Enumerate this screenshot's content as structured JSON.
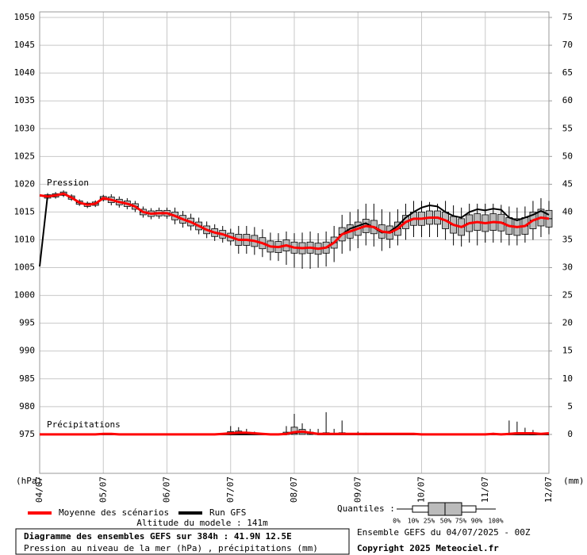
{
  "chart_data": {
    "type": "ensemble-boxplot",
    "pressure_label": "Pression",
    "precip_label": "Précipitations",
    "y_label": "(hPa)",
    "y2_label": "(mm)",
    "title": "Diagramme des ensembles GEFS sur 384h : 41.9N 12.5E",
    "subtitle": "Pression au niveau de la mer (hPa) , précipitations (mm)",
    "altitude": "Altitude du modele : 141m",
    "run_info": "Ensemble GEFS du 04/07/2025 - 00Z",
    "copyright": "Copyright 2025 Meteociel.fr",
    "quantiles_label": "Quantiles :",
    "quantile_labels": [
      "0%",
      "10%",
      "25%",
      "50%",
      "75%",
      "90%",
      "100%"
    ],
    "xlim": [
      0,
      384
    ],
    "xticks": [
      {
        "value": 0,
        "label": "04/07"
      },
      {
        "value": 48,
        "label": "05/07"
      },
      {
        "value": 96,
        "label": "06/07"
      },
      {
        "value": 144,
        "label": "07/07"
      },
      {
        "value": 192,
        "label": "08/07"
      },
      {
        "value": 240,
        "label": "09/07"
      },
      {
        "value": 288,
        "label": "10/07"
      },
      {
        "value": 336,
        "label": "11/07"
      },
      {
        "value": 384,
        "label": "12/07"
      }
    ],
    "ylim": [
      968,
      1051
    ],
    "yticks": [
      975,
      980,
      985,
      990,
      995,
      1000,
      1005,
      1010,
      1015,
      1020,
      1025,
      1030,
      1035,
      1040,
      1045,
      1050
    ],
    "y2lim": [
      -7,
      76
    ],
    "y2ticks": [
      0,
      5,
      10,
      15,
      20,
      25,
      30,
      35,
      40,
      45,
      50,
      55,
      60,
      65,
      70,
      75
    ],
    "grid": true,
    "x": [
      0,
      6,
      12,
      18,
      24,
      30,
      36,
      42,
      48,
      54,
      60,
      66,
      72,
      78,
      84,
      90,
      96,
      102,
      108,
      114,
      120,
      126,
      132,
      138,
      144,
      150,
      156,
      162,
      168,
      174,
      180,
      186,
      192,
      198,
      204,
      210,
      216,
      222,
      228,
      234,
      240,
      246,
      252,
      258,
      264,
      270,
      276,
      282,
      288,
      294,
      300,
      306,
      312,
      318,
      324,
      330,
      336,
      342,
      348,
      354,
      360,
      366,
      372,
      378,
      384
    ],
    "series": [
      {
        "name": "Moyenne des scénarios",
        "color": "#ff0000",
        "values": [
          1018.0,
          1017.8,
          1018.0,
          1018.3,
          1017.6,
          1016.7,
          1016.3,
          1016.5,
          1017.5,
          1017.2,
          1016.8,
          1016.5,
          1016.0,
          1015.0,
          1014.7,
          1014.8,
          1014.8,
          1014.3,
          1013.7,
          1013.2,
          1012.5,
          1011.8,
          1011.3,
          1011.0,
          1010.5,
          1010.0,
          1010.0,
          1009.8,
          1009.4,
          1008.8,
          1008.7,
          1009.0,
          1008.6,
          1008.5,
          1008.6,
          1008.4,
          1008.6,
          1009.5,
          1011.0,
          1011.5,
          1012.0,
          1012.5,
          1012.3,
          1011.5,
          1011.3,
          1012.0,
          1013.2,
          1013.8,
          1013.8,
          1014.0,
          1014.0,
          1013.5,
          1012.7,
          1012.3,
          1013.0,
          1013.2,
          1013.0,
          1013.2,
          1013.1,
          1012.5,
          1012.3,
          1012.5,
          1013.5,
          1014.0,
          1013.8
        ],
        "precip_values": [
          0,
          0,
          0,
          0,
          0,
          0,
          0,
          0,
          0.1,
          0.1,
          0,
          0,
          0,
          0,
          0,
          0,
          0,
          0,
          0,
          0,
          0,
          0,
          0,
          0.1,
          0.2,
          0.3,
          0.3,
          0.2,
          0.1,
          0,
          0,
          0.1,
          0.4,
          0.5,
          0.3,
          0.1,
          0.1,
          0.1,
          0.1,
          0.1,
          0.1,
          0.1,
          0.1,
          0.1,
          0.1,
          0.1,
          0.1,
          0.1,
          0,
          0,
          0,
          0,
          0,
          0,
          0,
          0,
          0,
          0.1,
          0,
          0.1,
          0.2,
          0.2,
          0.2,
          0.1,
          0.2
        ]
      },
      {
        "name": "Run GFS",
        "color": "#000000",
        "values": [
          1005.2,
          1018.0,
          1018.0,
          1018.3,
          1017.6,
          1016.7,
          1016.3,
          1016.5,
          1017.5,
          1017.2,
          1016.8,
          1016.5,
          1016.0,
          1015.0,
          1014.7,
          1014.8,
          1014.8,
          1014.3,
          1013.7,
          1013.2,
          1012.5,
          1011.8,
          1011.3,
          1011.0,
          1010.5,
          1010.0,
          1010.0,
          1009.8,
          1009.4,
          1008.8,
          1008.7,
          1009.0,
          1008.6,
          1008.5,
          1008.6,
          1008.4,
          1008.6,
          1009.5,
          1011.0,
          1012.0,
          1012.5,
          1013.0,
          1012.2,
          1011.3,
          1011.5,
          1012.5,
          1014.0,
          1015.0,
          1015.8,
          1016.2,
          1016.0,
          1015.0,
          1014.3,
          1014.0,
          1015.0,
          1015.5,
          1015.3,
          1015.6,
          1015.4,
          1014.0,
          1013.5,
          1014.0,
          1014.5,
          1015.2,
          1014.5
        ],
        "precip_values": [
          0,
          0,
          0,
          0,
          0,
          0,
          0,
          0,
          0,
          0,
          0,
          0,
          0,
          0,
          0,
          0,
          0,
          0,
          0,
          0,
          0,
          0,
          0,
          0,
          0,
          0,
          0,
          0,
          0,
          0,
          0,
          0,
          0.3,
          0.5,
          0.2,
          0,
          0,
          0,
          0,
          0,
          0,
          0,
          0,
          0,
          0,
          0,
          0,
          0,
          0,
          0,
          0,
          0,
          0,
          0,
          0,
          0,
          0,
          0,
          0,
          0,
          0,
          0,
          0,
          0,
          0
        ]
      }
    ],
    "boxes": [
      null,
      [
        1017.2,
        1017.5,
        1017.8,
        1018.1,
        1018.4
      ],
      [
        1017.4,
        1017.7,
        1018.0,
        1018.3,
        1018.6
      ],
      [
        1017.7,
        1018.0,
        1018.3,
        1018.6,
        1018.9
      ],
      [
        1017.0,
        1017.3,
        1017.6,
        1017.9,
        1018.2
      ],
      [
        1016.1,
        1016.4,
        1016.7,
        1017.0,
        1017.3
      ],
      [
        1015.7,
        1016.0,
        1016.3,
        1016.6,
        1016.9
      ],
      [
        1015.9,
        1016.2,
        1016.5,
        1016.8,
        1017.1
      ],
      [
        1016.9,
        1017.2,
        1017.5,
        1017.8,
        1018.1
      ],
      [
        1016.2,
        1016.7,
        1017.2,
        1017.7,
        1018.2
      ],
      [
        1015.8,
        1016.3,
        1016.8,
        1017.3,
        1017.8
      ],
      [
        1015.5,
        1016.0,
        1016.5,
        1017.0,
        1017.5
      ],
      [
        1015.0,
        1015.5,
        1016.0,
        1016.5,
        1017.0
      ],
      [
        1014.0,
        1014.5,
        1015.0,
        1015.5,
        1016.0
      ],
      [
        1013.7,
        1014.2,
        1014.7,
        1015.2,
        1015.7
      ],
      [
        1013.8,
        1014.3,
        1014.8,
        1015.3,
        1015.8
      ],
      [
        1013.8,
        1014.3,
        1014.8,
        1015.3,
        1015.8
      ],
      [
        1012.8,
        1013.6,
        1014.3,
        1015.0,
        1015.8
      ],
      [
        1012.2,
        1013.0,
        1013.7,
        1014.4,
        1015.2
      ],
      [
        1011.7,
        1012.5,
        1013.2,
        1013.9,
        1014.7
      ],
      [
        1011.0,
        1011.8,
        1012.5,
        1013.2,
        1014.0
      ],
      [
        1010.3,
        1011.1,
        1011.8,
        1012.5,
        1013.3
      ],
      [
        1009.8,
        1010.6,
        1011.3,
        1012.0,
        1012.8
      ],
      [
        1009.5,
        1010.3,
        1011.0,
        1011.7,
        1012.5
      ],
      [
        1009.0,
        1009.8,
        1010.5,
        1011.2,
        1012.0
      ],
      [
        1007.5,
        1009.0,
        1010.0,
        1011.0,
        1012.5
      ],
      [
        1007.5,
        1009.0,
        1010.0,
        1011.0,
        1012.5
      ],
      [
        1007.3,
        1008.8,
        1009.8,
        1010.8,
        1012.3
      ],
      [
        1006.9,
        1008.4,
        1009.4,
        1010.4,
        1011.9
      ],
      [
        1006.3,
        1007.8,
        1008.8,
        1009.8,
        1011.3
      ],
      [
        1006.2,
        1007.7,
        1008.7,
        1009.7,
        1011.2
      ],
      [
        1005.5,
        1008.0,
        1009.0,
        1010.0,
        1011.5
      ],
      [
        1005.0,
        1007.6,
        1008.6,
        1009.6,
        1011.2
      ],
      [
        1004.8,
        1007.5,
        1008.5,
        1009.5,
        1011.3
      ],
      [
        1004.8,
        1007.6,
        1008.6,
        1009.6,
        1011.5
      ],
      [
        1005.0,
        1007.4,
        1008.4,
        1009.4,
        1011.2
      ],
      [
        1005.2,
        1007.6,
        1008.6,
        1009.6,
        1011.5
      ],
      [
        1006.0,
        1008.5,
        1009.5,
        1010.5,
        1012.5
      ],
      [
        1007.5,
        1009.8,
        1011.0,
        1012.2,
        1014.5
      ],
      [
        1008.0,
        1010.3,
        1011.5,
        1012.7,
        1015.0
      ],
      [
        1008.5,
        1010.8,
        1012.0,
        1013.2,
        1015.5
      ],
      [
        1009.0,
        1011.3,
        1012.5,
        1013.7,
        1016.5
      ],
      [
        1008.8,
        1011.1,
        1012.3,
        1013.5,
        1016.5
      ],
      [
        1008.0,
        1010.3,
        1011.5,
        1012.7,
        1015.5
      ],
      [
        1008.5,
        1010.1,
        1011.3,
        1012.5,
        1015.0
      ],
      [
        1009.0,
        1010.8,
        1012.0,
        1013.2,
        1015.5
      ],
      [
        1010.0,
        1012.0,
        1013.2,
        1014.4,
        1016.5
      ],
      [
        1010.5,
        1012.6,
        1013.8,
        1015.0,
        1017.0
      ],
      [
        1010.5,
        1012.6,
        1013.8,
        1015.0,
        1017.0
      ],
      [
        1010.5,
        1012.8,
        1014.0,
        1015.2,
        1016.8
      ],
      [
        1010.5,
        1012.8,
        1014.0,
        1015.2,
        1016.5
      ],
      [
        1010.0,
        1012.0,
        1013.5,
        1015.0,
        1017.0
      ],
      [
        1009.0,
        1011.2,
        1012.7,
        1014.2,
        1016.2
      ],
      [
        1008.8,
        1010.8,
        1012.3,
        1013.8,
        1015.8
      ],
      [
        1009.5,
        1011.5,
        1013.0,
        1014.5,
        1016.5
      ],
      [
        1009.0,
        1011.7,
        1013.2,
        1014.7,
        1016.5
      ],
      [
        1009.5,
        1011.5,
        1013.0,
        1014.5,
        1016.5
      ],
      [
        1009.5,
        1011.7,
        1013.2,
        1014.7,
        1016.5
      ],
      [
        1009.5,
        1011.6,
        1013.1,
        1014.6,
        1016.3
      ],
      [
        1009.0,
        1011.0,
        1012.5,
        1014.0,
        1016.0
      ],
      [
        1009.0,
        1010.8,
        1012.3,
        1013.8,
        1015.8
      ],
      [
        1009.5,
        1011.0,
        1012.5,
        1014.0,
        1016.0
      ],
      [
        1010.0,
        1012.0,
        1013.5,
        1015.0,
        1017.0
      ],
      [
        1010.5,
        1012.5,
        1014.0,
        1015.5,
        1017.5
      ],
      [
        1011.0,
        1012.3,
        1013.8,
        1015.3,
        1017.0
      ]
    ],
    "precip_boxes": [
      null,
      null,
      null,
      null,
      null,
      null,
      null,
      null,
      null,
      null,
      null,
      null,
      null,
      null,
      null,
      null,
      null,
      null,
      null,
      null,
      null,
      null,
      null,
      null,
      [
        0,
        0,
        0.1,
        0.5,
        1.5
      ],
      [
        0,
        0,
        0.2,
        0.6,
        1.3
      ],
      [
        0,
        0,
        0.1,
        0.4,
        1
      ],
      [
        0,
        0,
        0,
        0.2,
        0.5
      ],
      null,
      null,
      null,
      [
        0,
        0,
        0,
        0.4,
        1.5
      ],
      [
        0,
        0,
        0.2,
        1.3,
        3.7
      ],
      [
        0,
        0,
        0.3,
        0.9,
        2
      ],
      [
        0,
        0,
        0,
        0.4,
        1
      ],
      [
        0,
        0,
        0,
        0.2,
        1
      ],
      [
        0,
        0,
        0,
        0.3,
        4
      ],
      [
        0,
        0,
        0,
        0.2,
        1
      ],
      [
        0,
        0,
        0,
        0.3,
        2.5
      ],
      null,
      [
        0,
        0,
        0,
        0.1,
        0.5
      ],
      [
        0,
        0,
        0,
        0,
        0.3
      ],
      null,
      null,
      null,
      null,
      null,
      null,
      null,
      null,
      null,
      null,
      null,
      null,
      null,
      null,
      null,
      [
        0,
        0,
        0,
        0,
        0.3
      ],
      null,
      [
        0,
        0,
        0,
        0.1,
        2.5
      ],
      [
        0,
        0,
        0,
        0.3,
        2.3
      ],
      [
        0,
        0,
        0,
        0.1,
        1.2
      ],
      [
        0,
        0,
        0,
        0,
        0.8
      ],
      null,
      null
    ]
  }
}
